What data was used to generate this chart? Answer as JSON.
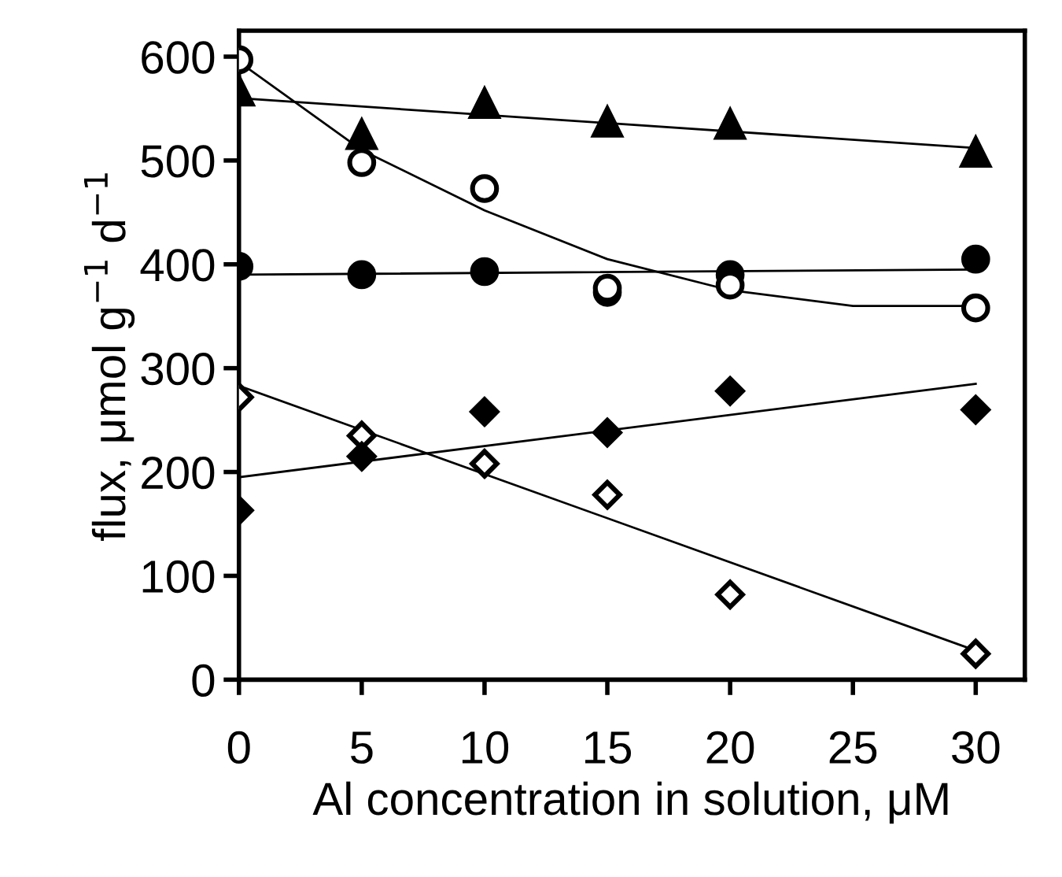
{
  "chart_data": {
    "type": "scatter",
    "xlabel": "Al concentration in solution, μM",
    "ylabel": "flux, μmol g$^{−1}$ d$^{−1}$",
    "xlim": [
      0,
      32
    ],
    "ylim": [
      0,
      625
    ],
    "xticks": [
      0,
      5,
      10,
      15,
      20,
      25,
      30
    ],
    "yticks": [
      0,
      100,
      200,
      300,
      400,
      500,
      600
    ],
    "grid": false,
    "legend": false,
    "series": [
      {
        "color": "#000000",
        "marker": "triangle",
        "x": [
          0,
          5,
          10,
          15,
          20,
          30
        ],
        "values": [
          567,
          525,
          555,
          537,
          535,
          508
        ]
      },
      {
        "color": "#ffffff",
        "marker": "circle",
        "x": [
          0,
          5,
          10,
          15,
          20,
          30
        ],
        "values": [
          597,
          498,
          473,
          377,
          380,
          358
        ]
      },
      {
        "color": "#000000",
        "marker": "circle",
        "x": [
          0,
          5,
          10,
          15,
          20,
          30
        ],
        "values": [
          398,
          390,
          393,
          373,
          390,
          405
        ]
      },
      {
        "color": "#000000",
        "marker": "diamond",
        "x": [
          0,
          5,
          10,
          15,
          20,
          30
        ],
        "values": [
          163,
          215,
          258,
          238,
          278,
          260
        ]
      },
      {
        "color": "#ffffff",
        "marker": "diamond",
        "x": [
          0,
          5,
          10,
          15,
          20,
          30
        ],
        "values": [
          272,
          235,
          208,
          178,
          82,
          25
        ]
      },
      {
        "type": "line",
        "color": "#000000",
        "marker": "none",
        "line_style": "solid",
        "x": [
          0,
          30
        ],
        "values": [
          560,
          512
        ]
      },
      {
        "type": "line",
        "color": "#000000",
        "marker": "none",
        "line_style": "solid",
        "x": [
          0,
          5,
          10,
          15,
          20,
          25,
          30
        ],
        "values": [
          595,
          510,
          452,
          405,
          375,
          360,
          360
        ]
      },
      {
        "type": "line",
        "color": "#000000",
        "marker": "none",
        "line_style": "solid",
        "x": [
          0,
          30
        ],
        "values": [
          390,
          395
        ]
      },
      {
        "type": "line",
        "color": "#000000",
        "marker": "none",
        "line_style": "solid",
        "x": [
          0,
          30
        ],
        "values": [
          195,
          285
        ]
      },
      {
        "type": "line",
        "color": "#000000",
        "marker": "none",
        "line_style": "solid",
        "x": [
          0,
          30
        ],
        "values": [
          283,
          28
        ]
      }
    ]
  }
}
